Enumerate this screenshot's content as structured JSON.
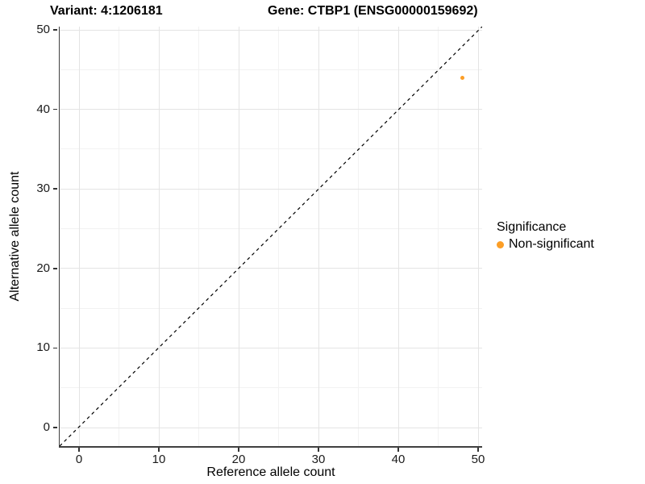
{
  "header": {
    "variant_title": "Variant: 4:1206181",
    "gene_title": "Gene: CTBP1 (ENSG00000159692)"
  },
  "axes": {
    "x_label": "Reference allele count",
    "y_label": "Alternative allele count"
  },
  "legend": {
    "title": "Significance",
    "items": [
      {
        "label": "Non-significant",
        "color": "#FC9E26"
      }
    ]
  },
  "chart_data": {
    "type": "scatter",
    "title": "Variant: 4:1206181 — Gene: CTBP1 (ENSG00000159692)",
    "xlabel": "Reference allele count",
    "ylabel": "Alternative allele count",
    "xlim": [
      -2.5,
      50.5
    ],
    "ylim": [
      -2.5,
      50.5
    ],
    "x_ticks": [
      0,
      10,
      20,
      30,
      40,
      50
    ],
    "y_ticks": [
      0,
      10,
      20,
      30,
      40,
      50
    ],
    "minor_tick_step": 5,
    "grid": "major+minor",
    "legend_position": "right",
    "series": [
      {
        "name": "Non-significant",
        "color": "#FC9E26",
        "marker": "circle",
        "marker_size_px": 5,
        "points": [
          {
            "x": 48,
            "y": 44
          }
        ]
      }
    ],
    "reference_line": {
      "name": "identity y=x",
      "style": "dashed",
      "color": "#000000",
      "from": {
        "x": -2.5,
        "y": -2.5
      },
      "to": {
        "x": 50.5,
        "y": 50.5
      }
    }
  }
}
